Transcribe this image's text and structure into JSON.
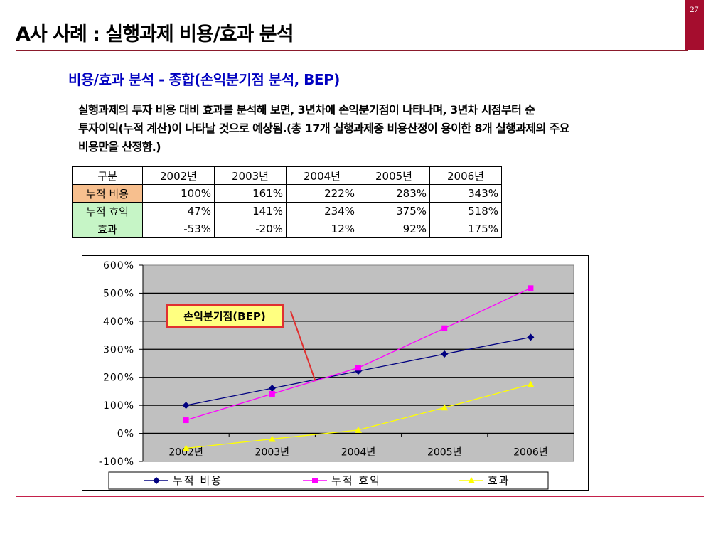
{
  "page": {
    "title": "A사 사례 : 실행과제 비용/효과 분석",
    "page_number": "27",
    "subtitle": "비용/효과 분석 - 종합(손익분기점 분석, BEP)",
    "description_lines": [
      "실행과제의 투자 비용 대비 효과를 분석해 보면, 3년차에 손익분기점이 나타나며, 3년차 시점부터 순",
      "투자이익(누적 계산)이 나타날 것으로 예상됨.(총 17개 실행과제중 비용산정이 용이한 8개 실행과제의 주요",
      "비용만을 산정함.)"
    ]
  },
  "table": {
    "header": [
      "구분",
      "2002년",
      "2003년",
      "2004년",
      "2005년",
      "2006년"
    ],
    "rows": [
      {
        "label": "누적 비용",
        "values": [
          "100%",
          "161%",
          "222%",
          "283%",
          "343%"
        ]
      },
      {
        "label": "누적 효익",
        "values": [
          "47%",
          "141%",
          "234%",
          "375%",
          "518%"
        ]
      },
      {
        "label": "효과",
        "values": [
          "-53%",
          "-20%",
          "12%",
          "92%",
          "175%"
        ]
      }
    ]
  },
  "colors": {
    "accent": "#a50d2e",
    "subtitle": "#0000c0",
    "cost_label_bg": "#f7bf8e",
    "benefit_label_bg": "#c6f5c6",
    "plot_bg": "#c0c0c0",
    "annotation_bg": "#ffff80",
    "annotation_border": "#e03030"
  },
  "chart_data": {
    "type": "line",
    "title": "",
    "xlabel": "",
    "ylabel": "",
    "categories": [
      "2002년",
      "2003년",
      "2004년",
      "2005년",
      "2006년"
    ],
    "ylim": [
      -100,
      600
    ],
    "yticks": [
      600,
      500,
      400,
      300,
      200,
      100,
      0,
      -100
    ],
    "ytick_labels": [
      "600%",
      "500%",
      "400%",
      "300%",
      "200%",
      "100%",
      "0%",
      "-100%"
    ],
    "grid": true,
    "legend_position": "bottom",
    "series": [
      {
        "name": "누적 비용",
        "color": "#000080",
        "marker": "diamond",
        "values": [
          100,
          161,
          222,
          283,
          343
        ]
      },
      {
        "name": "누적 효익",
        "color": "#ff00ff",
        "marker": "square",
        "values": [
          47,
          141,
          234,
          375,
          518
        ]
      },
      {
        "name": "효과",
        "color": "#ffff00",
        "marker": "triangle",
        "values": [
          -53,
          -20,
          12,
          92,
          175
        ]
      }
    ],
    "annotation": {
      "text": "손익분기점(BEP)",
      "target_category_index": 1.5,
      "target_value": 188
    }
  }
}
